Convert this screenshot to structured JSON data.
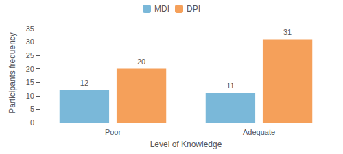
{
  "chart_data": {
    "type": "bar",
    "categories": [
      "Poor",
      "Adequate"
    ],
    "series": [
      {
        "name": "MDI",
        "color": "#7ab8d9",
        "values": [
          12,
          11
        ]
      },
      {
        "name": "DPI",
        "color": "#f5a05a",
        "values": [
          20,
          31
        ]
      }
    ],
    "xlabel": "Level of Knowledge",
    "ylabel": "Participants frequency",
    "ylim": [
      0,
      37
    ],
    "yticks": [
      0,
      5,
      10,
      15,
      20,
      25,
      30,
      35
    ],
    "grid": false,
    "legend": "top",
    "data_labels": true
  }
}
